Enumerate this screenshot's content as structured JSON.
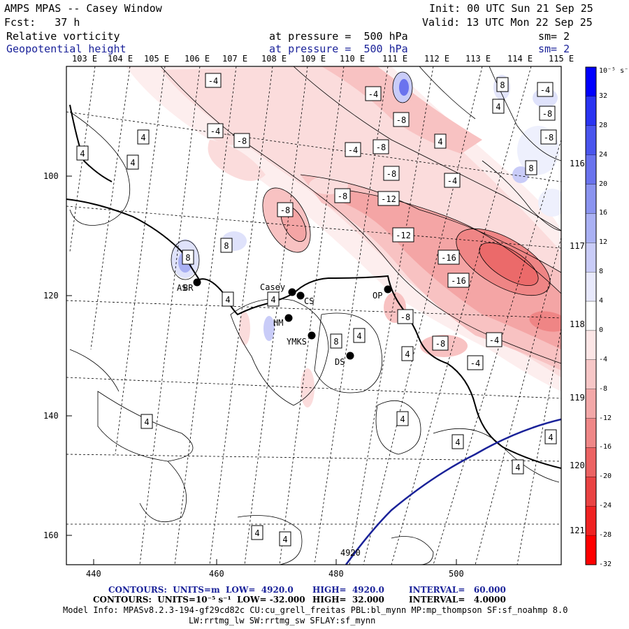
{
  "header": {
    "title": "AMPS MPAS -- Casey Window",
    "init": "Init: 00 UTC Sun 21 Sep 25",
    "fcst": "Fcst:   37 h",
    "valid": "Valid: 13 UTC Mon 22 Sep 25",
    "field1": {
      "name": "Relative vorticity",
      "level": "at pressure =  500 hPa",
      "sm": "sm= 2"
    },
    "field2": {
      "name": "Geopotential height",
      "level": "at pressure =  500 hPa",
      "sm": "sm= 2"
    }
  },
  "lon_top_labels": [
    "103 E",
    "104 E",
    "105 E",
    "106 E",
    "107 E",
    "108 E",
    "109 E",
    "110 E",
    "111 E",
    "112 E",
    "113 E",
    "114 E",
    "115 E"
  ],
  "lon_right_labels": [
    "116 E",
    "117 E",
    "118 E",
    "119 E",
    "120 E",
    "121 E"
  ],
  "x_axis": {
    "ticks": [
      "440",
      "460",
      "480",
      "500"
    ]
  },
  "y_axis": {
    "ticks": [
      "100",
      "120",
      "140",
      "160"
    ]
  },
  "colorbar": {
    "unit": "10⁻⁵ s⁻¹",
    "labels": [
      "32",
      "28",
      "24",
      "20",
      "16",
      "12",
      "8",
      "4",
      "0",
      "-4",
      "-8",
      "-12",
      "-16",
      "-20",
      "-24",
      "-28",
      "-32"
    ],
    "colors": [
      "#0000ff",
      "#2a34f2",
      "#4a55ee",
      "#6a73ee",
      "#8b94f0",
      "#aab1f4",
      "#c9ccf8",
      "#e8e9fc",
      "#ffffff",
      "#fce6e6",
      "#f7c7c7",
      "#f3a8a8",
      "#ef8787",
      "#ec6363",
      "#ea4343",
      "#f02222",
      "#ff0000"
    ]
  },
  "map_labels": {
    "contour_labels": [
      "-4",
      "-4",
      "-4",
      "-8",
      "-8",
      "-4",
      "-8",
      "-8",
      "4",
      "4",
      "4",
      "-8",
      "-4",
      "-8",
      "-12",
      "-8",
      "-12",
      "-16",
      "-16",
      "-4",
      "-8",
      "-8",
      "-4",
      "-4",
      "-8",
      "4",
      "8",
      "8",
      "8",
      "4",
      "8",
      "8",
      "4",
      "4",
      "4",
      "4",
      "4",
      "4",
      "4",
      "4",
      "4",
      "4",
      "4"
    ],
    "stations": [
      "Casey",
      "CS",
      "HM",
      "YMKS",
      "DS",
      "OP",
      "AS",
      "BR"
    ],
    "height_label": "4920"
  },
  "footer": {
    "line1": {
      "label": "CONTOURS:  UNITS=m  LOW=  4920.0",
      "high": "HIGH=  4920.0",
      "interval": "INTERVAL=   60.000"
    },
    "line2": {
      "label": "CONTOURS:  UNITS=10⁻⁵ s⁻¹  LOW= -32.000",
      "high": "HIGH=  32.000",
      "interval": "INTERVAL=   4.0000"
    },
    "line3": "Model Info: MPASv8.2.3-194-gf29cd82c CU:cu_grell_freitas PBL:bl_mynn MP:mp_thompson SF:sf_noahmp 8.0",
    "line4": "LW:rrtmg_lw SW:rrtmg_sw SFLAY:sf_mynn"
  }
}
